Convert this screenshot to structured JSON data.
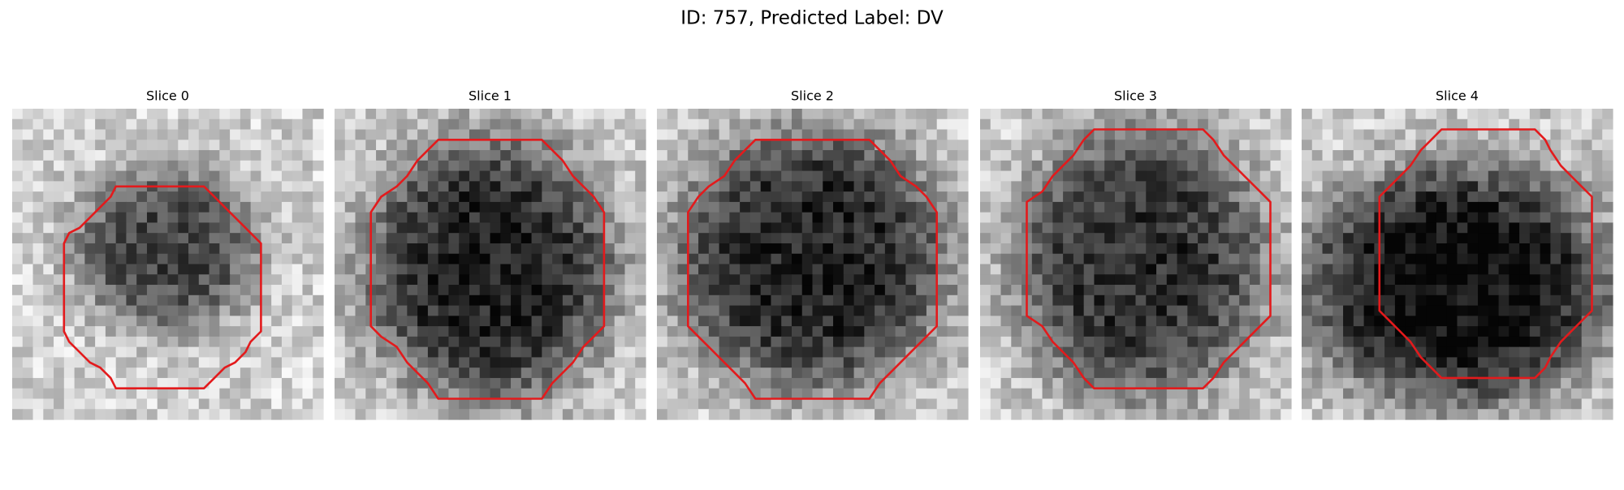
{
  "title": "ID: 757, Predicted Label: DV",
  "panels": [
    {
      "title": "Slice 0"
    },
    {
      "title": "Slice 1"
    },
    {
      "title": "Slice 2"
    },
    {
      "title": "Slice 3"
    },
    {
      "title": "Slice 4"
    }
  ]
}
